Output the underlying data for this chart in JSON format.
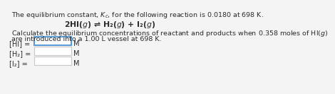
{
  "line1": "The equilibrium constant, $K_c$, for the following reaction is 0.0180 at 698 K.",
  "line2": "2HI($g$) ⇌ H₂($g$) + I₂($g$)",
  "line3": "Calculate the equilibrium concentrations of reactant and products when 0.358 moles of HI($g$)",
  "line4": "are introduced into a 1.00 L vessel at 698 K.",
  "label1": "[HI]",
  "label2": "[H₂]",
  "label3": "[I₂]",
  "unit": "M",
  "bg_color": "#f4f4f4",
  "text_color": "#2a2a2a",
  "box_color": "#ffffff",
  "box_edge_hi": "#5b9bd5",
  "box_edge_other": "#c8c8c8",
  "fontsize_main": 6.8,
  "fontsize_reaction": 7.8,
  "fontsize_labels": 7.0
}
